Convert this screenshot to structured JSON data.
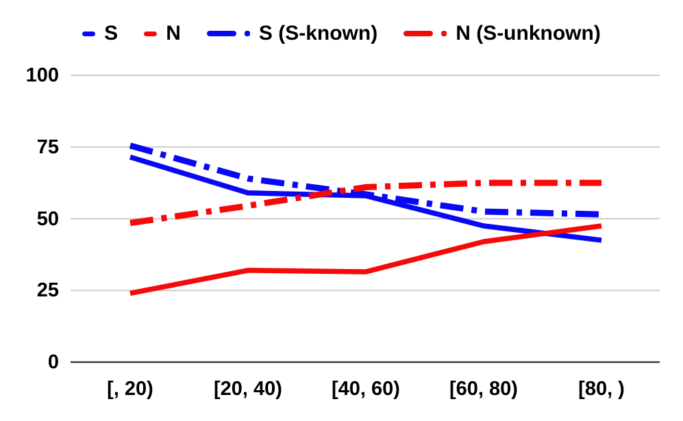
{
  "chart_data": {
    "type": "line",
    "title": "",
    "xlabel": "",
    "ylabel": "",
    "categories": [
      "[, 20)",
      "[20, 40)",
      "[40, 60)",
      "[60, 80)",
      "[80, )"
    ],
    "series": [
      {
        "name": "S",
        "color": "#0808f5",
        "style": "solid",
        "width": 7.5,
        "values": [
          71.5,
          59,
          58,
          47.5,
          42.5
        ]
      },
      {
        "name": "N",
        "color": "#f50a0a",
        "style": "solid",
        "width": 7.5,
        "values": [
          24,
          32,
          31.5,
          42,
          47.5
        ]
      },
      {
        "name": "S (S-known)",
        "color": "#0808f5",
        "style": "dash-dot",
        "width": 9,
        "values": [
          75.5,
          64,
          58.5,
          52.5,
          51.5
        ]
      },
      {
        "name": "N (S-unknown)",
        "color": "#f50a0a",
        "style": "dash-dot",
        "width": 9,
        "values": [
          48.5,
          54.5,
          61,
          62.5,
          62.5
        ]
      }
    ],
    "yticks": [
      0,
      25,
      50,
      75,
      100
    ],
    "ylim": [
      0,
      100
    ],
    "grid": true,
    "legend_position": "top",
    "colors": {
      "grid": "#cccccc",
      "axis": "#3d3d3d",
      "text": "#000000",
      "background": "#ffffff"
    }
  }
}
